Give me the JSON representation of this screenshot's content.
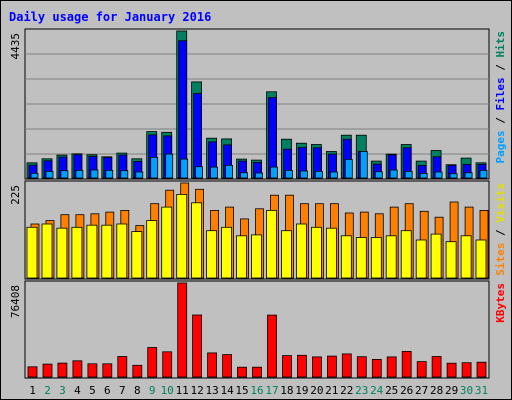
{
  "chart_data": {
    "type": "bar",
    "title": "Daily usage for January 2016",
    "categories": [
      "1",
      "2",
      "3",
      "4",
      "5",
      "6",
      "7",
      "8",
      "9",
      "10",
      "11",
      "12",
      "13",
      "14",
      "15",
      "16",
      "17",
      "18",
      "19",
      "20",
      "21",
      "22",
      "23",
      "24",
      "25",
      "26",
      "27",
      "28",
      "29",
      "30",
      "31"
    ],
    "weekend_days": [
      "2",
      "3",
      "9",
      "10",
      "16",
      "17",
      "23",
      "24",
      "30",
      "31"
    ],
    "panels": [
      {
        "id": "hits",
        "axis_max_label": "4435",
        "ymax": 4435,
        "right_labels": [
          {
            "text": "Pages",
            "color": "#00a0ff"
          },
          {
            "text": " / ",
            "color": "#000000"
          },
          {
            "text": "Files",
            "color": "#0000ff"
          },
          {
            "text": " / ",
            "color": "#000000"
          },
          {
            "text": "Hits",
            "color": "#008060"
          }
        ],
        "series": [
          {
            "name": "Hits",
            "color": "#008060",
            "values": [
              460,
              580,
              690,
              730,
              700,
              640,
              750,
              580,
              1400,
              1380,
              4435,
              2900,
              1200,
              1180,
              570,
              540,
              2600,
              1170,
              1050,
              1010,
              800,
              1290,
              1290,
              510,
              720,
              1010,
              510,
              830,
              400,
              600,
              460
            ]
          },
          {
            "name": "Files",
            "color": "#0000ff",
            "values": [
              390,
              520,
              630,
              700,
              650,
              620,
              690,
              500,
              1300,
              1270,
              4140,
              2550,
              1090,
              1000,
              510,
              470,
              2430,
              870,
              920,
              910,
              720,
              1170,
              800,
              420,
              700,
              910,
              380,
              640,
              380,
              410,
              410
            ]
          },
          {
            "name": "Pages",
            "color": "#00a0ff",
            "values": [
              140,
              200,
              220,
              230,
              240,
              230,
              220,
              180,
              620,
              720,
              570,
              340,
              330,
              380,
              160,
              150,
              330,
              230,
              210,
              200,
              180,
              560,
              800,
              190,
              240,
              200,
              140,
              180,
              130,
              160,
              230
            ]
          }
        ]
      },
      {
        "id": "visits",
        "axis_max_label": "225",
        "ymax": 225,
        "right_labels": [
          {
            "text": "Sites",
            "color": "#ff8000"
          },
          {
            "text": " / ",
            "color": "#000000"
          },
          {
            "text": "Visits",
            "color": "#e0e000"
          }
        ],
        "series": [
          {
            "name": "Visits",
            "color": "#ffff00",
            "values": [
              120,
              128,
              118,
              120,
              125,
              125,
              128,
              110,
              136,
              168,
              198,
              178,
              112,
              120,
              100,
              102,
              160,
              112,
              128,
              120,
              118,
              100,
              96,
              96,
              100,
              112,
              90,
              104,
              86,
              100,
              90
            ]
          },
          {
            "name": "Sites",
            "color": "#ff8000",
            "values": [
              128,
              136,
              150,
              150,
              152,
              156,
              160,
              124,
              176,
              208,
              225,
              210,
              160,
              168,
              140,
              164,
              196,
              196,
              176,
              176,
              176,
              154,
              156,
              152,
              168,
              176,
              158,
              144,
              180,
              168,
              160
            ]
          }
        ]
      },
      {
        "id": "kbytes",
        "axis_max_label": "76408",
        "ymax": 76408,
        "right_labels": [
          {
            "text": "KBytes",
            "color": "#ff0000"
          }
        ],
        "series": [
          {
            "name": "KBytes",
            "color": "#ff0000",
            "values": [
              8300,
              10500,
              11300,
              13200,
              10700,
              10700,
              16700,
              9500,
              24000,
              20500,
              76408,
              50400,
              19600,
              18200,
              8000,
              8000,
              50300,
              17400,
              17600,
              16300,
              17000,
              18800,
              16500,
              14300,
              16300,
              20800,
              12500,
              16700,
              11200,
              11600,
              12000
            ]
          }
        ]
      }
    ]
  }
}
